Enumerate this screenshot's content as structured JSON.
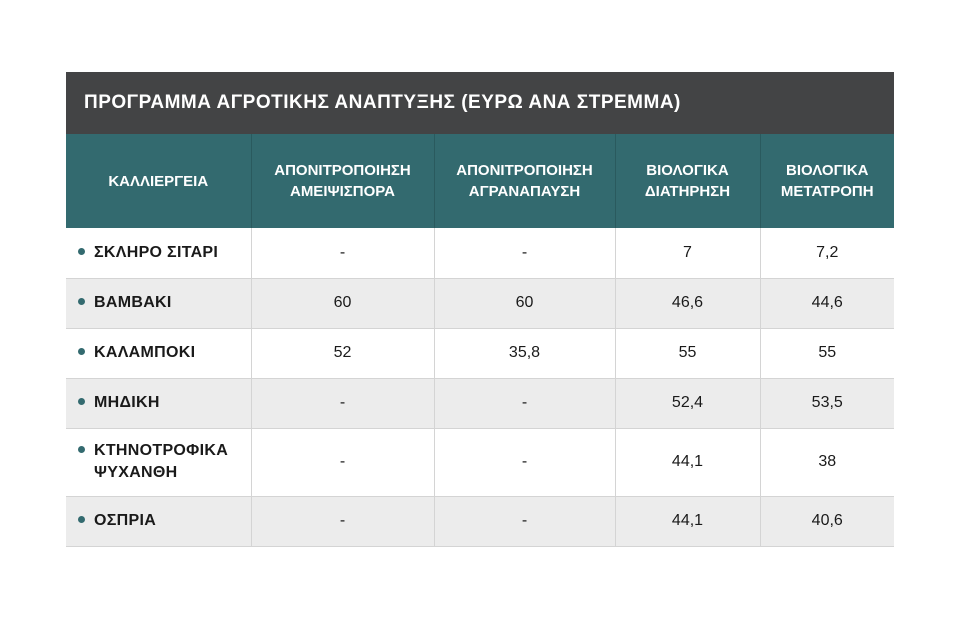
{
  "title": "ΠΡΟΓΡΑΜΜΑ ΑΓΡΟΤΙΚΗΣ ΑΝΑΠΤΥΞΗΣ (ΕΥΡΩ ΑΝΑ ΣΤΡΕΜΜΑ)",
  "headers": [
    {
      "line1": "ΚΑΛΛΙΕΡΓΕΙΑ",
      "line2": ""
    },
    {
      "line1": "ΑΠΟΝΙΤΡΟΠΟΙΗΣΗ",
      "line2": "ΑΜΕΙΨΙΣΠΟΡΑ"
    },
    {
      "line1": "ΑΠΟΝΙΤΡΟΠΟΙΗΣΗ",
      "line2": "ΑΓΡΑΝΑΠΑΥΣΗ"
    },
    {
      "line1": "ΒΙΟΛΟΓΙΚΑ",
      "line2": "ΔΙΑΤΗΡΗΣΗ"
    },
    {
      "line1": "ΒΙΟΛΟΓΙΚΑ",
      "line2": "ΜΕΤΑΤΡΟΠΗ"
    }
  ],
  "rows": [
    {
      "crop": [
        "ΣΚΛΗΡΟ ΣΙΤΑΡΙ"
      ],
      "values": [
        "-",
        "-",
        "7",
        "7,2"
      ]
    },
    {
      "crop": [
        "ΒΑΜΒΑΚΙ"
      ],
      "values": [
        "60",
        "60",
        "46,6",
        "44,6"
      ]
    },
    {
      "crop": [
        "ΚΑΛΑΜΠΟΚΙ"
      ],
      "values": [
        "52",
        "35,8",
        "55",
        "55"
      ]
    },
    {
      "crop": [
        "ΜΗΔΙΚΗ"
      ],
      "values": [
        "-",
        "-",
        "52,4",
        "53,5"
      ]
    },
    {
      "crop": [
        "ΚΤΗΝΟΤΡΟΦΙΚΑ",
        "ΨΥΧΑΝΘΗ"
      ],
      "values": [
        "-",
        "-",
        "44,1",
        "38"
      ]
    },
    {
      "crop": [
        "ΟΣΠΡΙΑ"
      ],
      "values": [
        "-",
        "-",
        "44,1",
        "40,6"
      ]
    }
  ],
  "colors": {
    "title_bg": "#434445",
    "header_bg": "#336a6f",
    "row_alt_bg": "#ececec",
    "bullet": "#336a6f"
  }
}
